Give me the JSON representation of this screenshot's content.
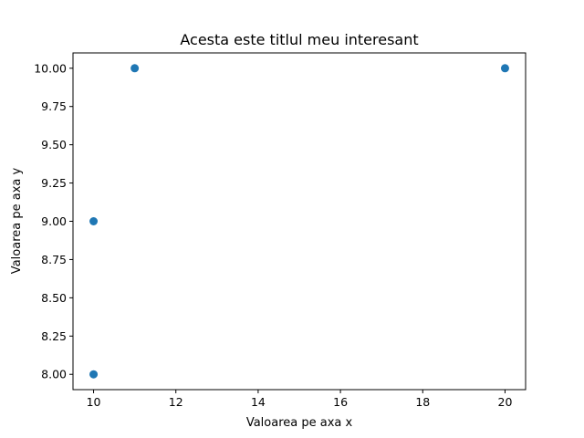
{
  "chart_data": {
    "type": "scatter",
    "title": "Acesta este titlul meu interesant",
    "xlabel": "Valoarea pe axa x",
    "ylabel": "Valoarea pe axa y",
    "xlim": [
      9.5,
      20.5
    ],
    "ylim": [
      7.9,
      10.1
    ],
    "xticks": [
      10,
      12,
      14,
      16,
      18,
      20
    ],
    "xtick_labels": [
      "10",
      "12",
      "14",
      "16",
      "18",
      "20"
    ],
    "yticks": [
      8.0,
      8.25,
      8.5,
      8.75,
      9.0,
      9.25,
      9.5,
      9.75,
      10.0
    ],
    "ytick_labels": [
      "8.00",
      "8.25",
      "8.50",
      "8.75",
      "9.00",
      "9.25",
      "9.50",
      "9.75",
      "10.00"
    ],
    "grid": false,
    "series": [
      {
        "color": "#1f77b4",
        "points": [
          {
            "x": 10,
            "y": 8
          },
          {
            "x": 10,
            "y": 9
          },
          {
            "x": 11,
            "y": 10
          },
          {
            "x": 20,
            "y": 10
          }
        ]
      }
    ]
  }
}
